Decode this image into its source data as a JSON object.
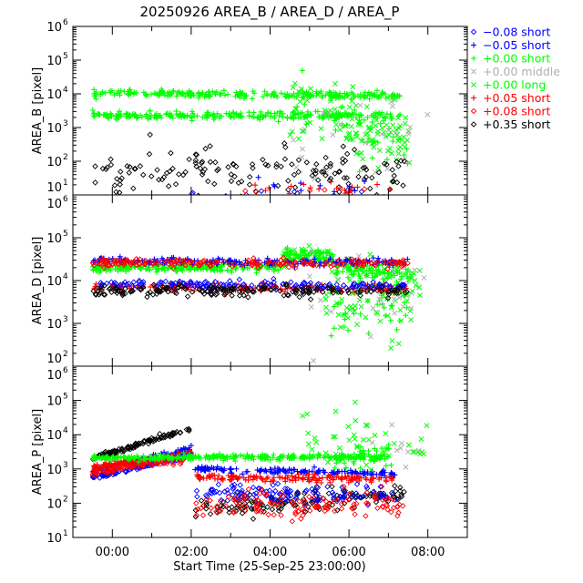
{
  "chart_data": {
    "type": "scatter",
    "title": "20250926 AREA_B / AREA_D / AREA_P",
    "xlabel": "Start Time (25-Sep-25 23:00:00)",
    "x_units": "hours relative to 00:00",
    "xlim": [
      -1,
      9
    ],
    "x_ticks": [
      {
        "v": 0,
        "label": "00:00"
      },
      {
        "v": 2,
        "label": "02:00"
      },
      {
        "v": 4,
        "label": "04:00"
      },
      {
        "v": 6,
        "label": "06:00"
      },
      {
        "v": 8,
        "label": "08:00"
      }
    ],
    "yscale": "log",
    "legend": {
      "placement": "right-outside-top",
      "entries": [
        {
          "key": "bd",
          "marker": "diamond",
          "color": "#0000ff",
          "label": "−0.08 short"
        },
        {
          "key": "bp",
          "marker": "plus",
          "color": "#0000ff",
          "label": "−0.05 short"
        },
        {
          "key": "gp",
          "marker": "plus",
          "color": "#00ff00",
          "label": "+0.00 short"
        },
        {
          "key": "yx",
          "marker": "x",
          "color": "#b0b0b0",
          "label": "+0.00 middle"
        },
        {
          "key": "gx",
          "marker": "x",
          "color": "#00ff00",
          "label": "+0.00 long"
        },
        {
          "key": "rp",
          "marker": "plus",
          "color": "#ff0000",
          "label": "+0.05 short"
        },
        {
          "key": "rd",
          "marker": "diamond",
          "color": "#ff0000",
          "label": "+0.08 short"
        },
        {
          "key": "kd",
          "marker": "diamond",
          "color": "#000000",
          "label": "+0.35 short"
        }
      ]
    },
    "panels": [
      {
        "ylabel": "AREA_B [pixel]",
        "ylim_log10": [
          1,
          6
        ],
        "tick_exponents": [
          1,
          2,
          3,
          4,
          5,
          6
        ],
        "series": [
          {
            "key": "gp",
            "bands": [
              [
                -0.5,
                7.3,
                4.02,
                3.95,
                0.05,
                260
              ],
              [
                -0.5,
                7.3,
                3.35,
                3.35,
                0.06,
                260
              ],
              [
                4.5,
                7.5,
                3.6,
                2.3,
                0.4,
                40
              ]
            ]
          },
          {
            "key": "gx",
            "bands": [
              [
                4.5,
                7.6,
                3.6,
                2.6,
                0.45,
                110
              ]
            ]
          },
          {
            "key": "yx",
            "bands": [
              [
                4.5,
                8.0,
                2.6,
                2.6,
                0.7,
                25
              ]
            ]
          },
          {
            "key": "kd",
            "bands": [
              [
                -0.5,
                7.5,
                1.7,
                1.6,
                0.35,
                150
              ]
            ]
          },
          {
            "key": "bd",
            "bands": [
              [
                1.5,
                6.5,
                1.1,
                1.1,
                0.1,
                8
              ]
            ]
          },
          {
            "key": "rd",
            "bands": [
              [
                1.5,
                6.5,
                1.1,
                1.1,
                0.1,
                8
              ]
            ]
          },
          {
            "key": "rp",
            "bands": [
              [
                3.5,
                7.2,
                1.2,
                1.2,
                0.12,
                20
              ]
            ]
          },
          {
            "key": "bp",
            "bands": [
              [
                3.5,
                7.2,
                1.3,
                1.3,
                0.15,
                10
              ]
            ]
          }
        ]
      },
      {
        "ylabel": "AREA_D [pixel]",
        "ylim_log10": [
          2,
          6
        ],
        "tick_exponents": [
          2,
          3,
          4,
          5,
          6
        ],
        "series": [
          {
            "key": "gp",
            "bands": [
              [
                -0.5,
                4.3,
                4.28,
                4.32,
                0.05,
                220
              ],
              [
                4.3,
                5.6,
                4.6,
                4.55,
                0.08,
                70
              ],
              [
                5.6,
                7.6,
                4.25,
                4.15,
                0.08,
                90
              ],
              [
                5.5,
                7.5,
                3.4,
                3.4,
                0.3,
                40
              ]
            ]
          },
          {
            "key": "gx",
            "bands": [
              [
                5.4,
                7.8,
                3.6,
                3.6,
                0.45,
                90
              ],
              [
                4.3,
                5.6,
                4.6,
                4.6,
                0.1,
                30
              ]
            ]
          },
          {
            "key": "yx",
            "bands": [
              [
                5.0,
                8.0,
                3.8,
                3.6,
                0.5,
                30
              ]
            ]
          },
          {
            "key": "bp",
            "bands": [
              [
                -0.5,
                7.5,
                4.47,
                4.42,
                0.04,
                200
              ]
            ]
          },
          {
            "key": "rd",
            "bands": [
              [
                -0.5,
                7.5,
                4.42,
                4.38,
                0.05,
                200
              ]
            ]
          },
          {
            "key": "rp",
            "bands": [
              [
                -0.5,
                7.5,
                3.85,
                3.8,
                0.05,
                170
              ]
            ]
          },
          {
            "key": "bd",
            "bands": [
              [
                -0.5,
                7.5,
                3.93,
                3.85,
                0.05,
                150
              ]
            ]
          },
          {
            "key": "kd",
            "bands": [
              [
                -0.5,
                7.5,
                3.78,
                3.75,
                0.06,
                180
              ]
            ]
          }
        ]
      },
      {
        "ylabel": "AREA_P [pixel]",
        "ylim_log10": [
          1,
          6
        ],
        "tick_exponents": [
          1,
          2,
          3,
          4,
          5,
          6
        ],
        "series": [
          {
            "key": "kd",
            "bands": [
              [
                -0.5,
                2.0,
                3.3,
                4.2,
                0.04,
                110
              ],
              [
                2.1,
                7.4,
                1.8,
                2.3,
                0.15,
                150
              ]
            ]
          },
          {
            "key": "bp",
            "bands": [
              [
                -0.5,
                2.0,
                2.95,
                3.6,
                0.04,
                90
              ],
              [
                2.1,
                7.2,
                3.0,
                2.85,
                0.04,
                140
              ]
            ]
          },
          {
            "key": "rp",
            "bands": [
              [
                -0.5,
                2.0,
                3.05,
                3.45,
                0.04,
                100
              ],
              [
                2.1,
                7.2,
                2.75,
                2.7,
                0.05,
                150
              ]
            ]
          },
          {
            "key": "bd",
            "bands": [
              [
                -0.5,
                2.0,
                2.75,
                3.4,
                0.04,
                90
              ],
              [
                2.1,
                7.2,
                2.3,
                2.2,
                0.15,
                120
              ]
            ]
          },
          {
            "key": "rd",
            "bands": [
              [
                -0.5,
                2.0,
                2.9,
                3.35,
                0.05,
                90
              ],
              [
                2.1,
                7.4,
                1.9,
                2.0,
                0.2,
                130
              ]
            ]
          },
          {
            "key": "gp",
            "bands": [
              [
                -0.5,
                7.0,
                3.33,
                3.35,
                0.04,
                330
              ],
              [
                5.6,
                7.1,
                3.3,
                3.4,
                0.2,
                40
              ]
            ]
          },
          {
            "key": "gx",
            "bands": [
              [
                4.4,
                8.0,
                3.8,
                3.6,
                0.55,
                45
              ]
            ]
          },
          {
            "key": "yx",
            "bands": [
              [
                6.5,
                8.0,
                3.5,
                3.5,
                0.4,
                8
              ]
            ]
          }
        ]
      }
    ]
  }
}
